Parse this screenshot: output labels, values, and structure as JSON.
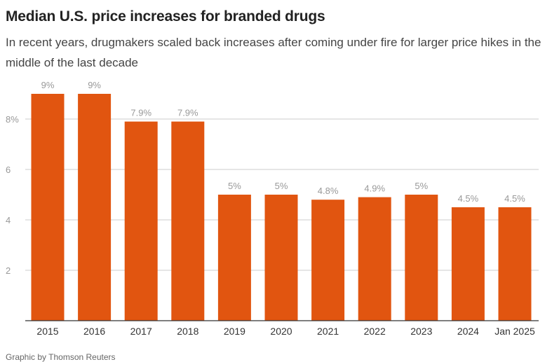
{
  "header": {
    "title": "Median U.S. price increases for branded drugs",
    "subtitle": "In recent years, drugmakers scaled back increases after coming under fire for larger price hikes in the middle of the last decade"
  },
  "footer": {
    "source": "Graphic by Thomson Reuters"
  },
  "colors": {
    "bar": "#E15510",
    "grid": "#cccccc",
    "axis": "#333333"
  },
  "chart_data": {
    "type": "bar",
    "title": "Median U.S. price increases for branded drugs",
    "xlabel": "",
    "ylabel": "",
    "categories": [
      "2015",
      "2016",
      "2017",
      "2018",
      "2019",
      "2020",
      "2021",
      "2022",
      "2023",
      "2024",
      "Jan 2025"
    ],
    "values": [
      9,
      9,
      7.9,
      7.9,
      5,
      5,
      4.8,
      4.9,
      5,
      4.5,
      4.5
    ],
    "data_labels": [
      "9%",
      "9%",
      "7.9%",
      "7.9%",
      "5%",
      "5%",
      "4.8%",
      "4.9%",
      "5%",
      "4.5%",
      "4.5%"
    ],
    "yticks": [
      2,
      4,
      6,
      8
    ],
    "ytick_labels": [
      "2",
      "4",
      "6",
      "8%"
    ],
    "ylim": [
      0,
      9
    ],
    "grid": true
  }
}
